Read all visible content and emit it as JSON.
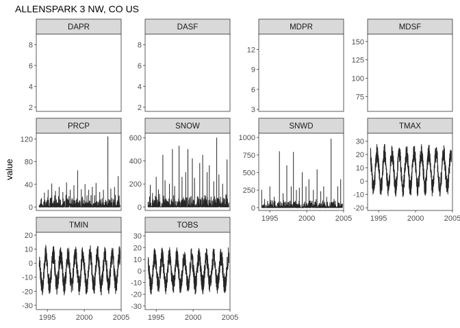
{
  "chart_data": {
    "type": "line",
    "title": "ALLENSPARK 3 NW, CO US",
    "xlabel": "",
    "ylabel": "value",
    "x_range": [
      1993.5,
      2005
    ],
    "x_ticks": [
      1995,
      2000,
      2005
    ],
    "x_tick_labels": [
      "1995",
      "2000",
      "2005"
    ],
    "grid": false,
    "legend": "none",
    "facets": [
      {
        "name": "DAPR",
        "ylim": [
          1.6,
          9.0
        ],
        "y_ticks": [
          2,
          4,
          6,
          8
        ],
        "y_tick_labels": [
          "2",
          "4",
          "6",
          "8"
        ],
        "series": []
      },
      {
        "name": "DASF",
        "ylim": [
          1.6,
          9.0
        ],
        "y_ticks": [
          2,
          4,
          6,
          8
        ],
        "y_tick_labels": [
          "2",
          "4",
          "6",
          "8"
        ],
        "series": []
      },
      {
        "name": "MDPR",
        "ylim": [
          2.7,
          14.3
        ],
        "y_ticks": [
          3,
          6,
          9,
          12
        ],
        "y_tick_labels": [
          "3",
          "6",
          "9",
          "12"
        ],
        "series": []
      },
      {
        "name": "MDSF",
        "ylim": [
          55,
          160
        ],
        "y_ticks": [
          75,
          100,
          125,
          150
        ],
        "y_tick_labels": [
          "75",
          "100",
          "125",
          "150"
        ],
        "series": []
      },
      {
        "name": "PRCP",
        "ylim": [
          -6,
          130
        ],
        "y_ticks": [
          0,
          40,
          80,
          120
        ],
        "y_tick_labels": [
          "0",
          "40",
          "80",
          "120"
        ],
        "series": [
          [
            1993.9,
            3
          ],
          [
            1994.2,
            12
          ],
          [
            1994.6,
            25
          ],
          [
            1995.1,
            30
          ],
          [
            1995.6,
            41
          ],
          [
            1996.1,
            28
          ],
          [
            1996.6,
            35
          ],
          [
            1997.1,
            26
          ],
          [
            1997.6,
            43
          ],
          [
            1998.1,
            30
          ],
          [
            1998.6,
            38
          ],
          [
            1999.1,
            64
          ],
          [
            1999.6,
            31
          ],
          [
            2000.1,
            40
          ],
          [
            2000.6,
            30
          ],
          [
            2001.1,
            35
          ],
          [
            2001.6,
            42
          ],
          [
            2002.1,
            26
          ],
          [
            2002.6,
            30
          ],
          [
            2003.2,
            124
          ],
          [
            2003.6,
            32
          ],
          [
            2004.1,
            35
          ],
          [
            2004.6,
            54
          ]
        ]
      },
      {
        "name": "SNOW",
        "ylim": [
          -30,
          640
        ],
        "y_ticks": [
          0,
          200,
          400,
          600
        ],
        "y_tick_labels": [
          "0",
          "200",
          "400",
          "600"
        ],
        "series": [
          [
            1993.9,
            40
          ],
          [
            1994.2,
            190
          ],
          [
            1994.5,
            120
          ],
          [
            1995.0,
            260
          ],
          [
            1995.3,
            150
          ],
          [
            1995.9,
            450
          ],
          [
            1996.2,
            230
          ],
          [
            1996.8,
            200
          ],
          [
            1997.2,
            500
          ],
          [
            1997.5,
            180
          ],
          [
            1998.1,
            530
          ],
          [
            1998.5,
            260
          ],
          [
            1999.0,
            300
          ],
          [
            1999.3,
            500
          ],
          [
            1999.9,
            420
          ],
          [
            2000.2,
            250
          ],
          [
            2000.9,
            380
          ],
          [
            2001.3,
            450
          ],
          [
            2001.9,
            300
          ],
          [
            2002.2,
            360
          ],
          [
            2002.8,
            220
          ],
          [
            2003.2,
            600
          ],
          [
            2003.5,
            280
          ],
          [
            2004.0,
            200
          ],
          [
            2004.6,
            410
          ]
        ]
      },
      {
        "name": "SNWD",
        "ylim": [
          -40,
          1060
        ],
        "y_ticks": [
          0,
          250,
          500,
          750,
          1000
        ],
        "y_tick_labels": [
          "0",
          "250",
          "500",
          "750",
          "1000"
        ],
        "series": [
          [
            1993.9,
            250
          ],
          [
            1994.3,
            120
          ],
          [
            1995.0,
            300
          ],
          [
            1995.6,
            150
          ],
          [
            1996.3,
            800
          ],
          [
            1996.8,
            200
          ],
          [
            1997.3,
            600
          ],
          [
            1997.9,
            300
          ],
          [
            1998.2,
            790
          ],
          [
            1998.6,
            250
          ],
          [
            1999.0,
            280
          ],
          [
            1999.4,
            500
          ],
          [
            1999.9,
            300
          ],
          [
            2000.3,
            400
          ],
          [
            2000.9,
            250
          ],
          [
            2001.4,
            540
          ],
          [
            2001.9,
            230
          ],
          [
            2002.3,
            300
          ],
          [
            2002.7,
            150
          ],
          [
            2003.3,
            980
          ],
          [
            2003.7,
            120
          ],
          [
            2004.2,
            300
          ],
          [
            2004.6,
            400
          ]
        ]
      },
      {
        "name": "TMAX",
        "ylim": [
          -22,
          36
        ],
        "y_ticks": [
          -20,
          -10,
          0,
          10,
          20,
          30
        ],
        "y_tick_labels": [
          "-20",
          "-10",
          "0",
          "10",
          "20",
          "30"
        ],
        "series": []
      },
      {
        "name": "TMIN",
        "ylim": [
          -33,
          22
        ],
        "y_ticks": [
          -30,
          -20,
          -10,
          0,
          10,
          20
        ],
        "y_tick_labels": [
          "-30",
          "-20",
          "-10",
          "0",
          "10",
          "20"
        ],
        "series": []
      },
      {
        "name": "TOBS",
        "ylim": [
          -33,
          33
        ],
        "y_ticks": [
          -30,
          -20,
          -10,
          0,
          10,
          20,
          30
        ],
        "y_tick_labels": [
          "-30",
          "-20",
          "-10",
          "0",
          "10",
          "20",
          "30"
        ],
        "series": []
      }
    ]
  }
}
